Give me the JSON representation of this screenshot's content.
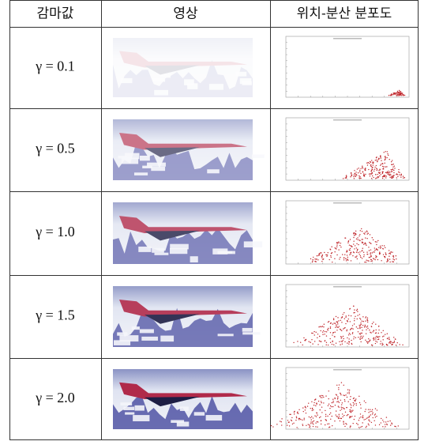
{
  "table": {
    "headers": [
      "감마값",
      "영상",
      "위치-분산 분포도"
    ],
    "rows": [
      "γ = 0.1",
      "γ = 0.5",
      "γ = 1.0",
      "γ = 1.5",
      "γ = 2.0"
    ]
  }
}
